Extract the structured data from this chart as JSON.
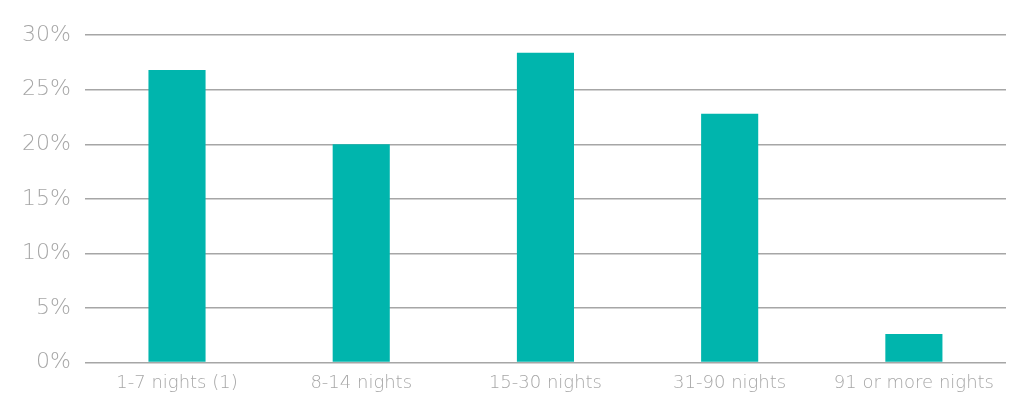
{
  "chart_data": {
    "type": "bar",
    "categories": [
      "1-7 nights (1)",
      "8-14 nights",
      "15-30 nights",
      "31-90 nights",
      "91 or more nights"
    ],
    "values": [
      26.8,
      20.0,
      28.4,
      22.8,
      2.6
    ],
    "color": "#00b5ad",
    "ylim": [
      0,
      30
    ],
    "yticks": [
      {
        "value": 0,
        "label": "0%"
      },
      {
        "value": 5,
        "label": "5%"
      },
      {
        "value": 10,
        "label": "10%"
      },
      {
        "value": 15,
        "label": "15%"
      },
      {
        "value": 20,
        "label": "20%"
      },
      {
        "value": 25,
        "label": "25%"
      },
      {
        "value": 30,
        "label": "30%"
      }
    ],
    "grid": "y",
    "legend": false
  }
}
